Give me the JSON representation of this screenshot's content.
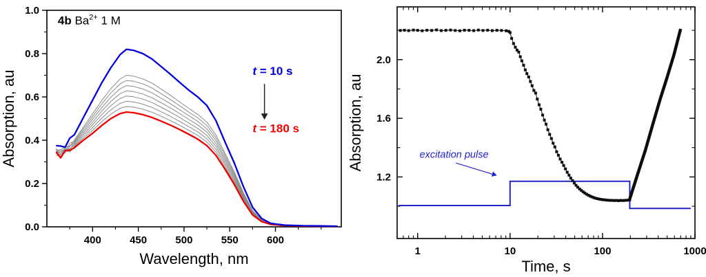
{
  "figure": {
    "background": "#ffffff"
  },
  "chart_data": [
    {
      "id": "spectra",
      "type": "line",
      "xlabel": "Wavelength, nm",
      "ylabel": "Absorption, au",
      "xlim": [
        350,
        672
      ],
      "ylim": [
        0,
        1.0
      ],
      "xticks": [
        400,
        450,
        500,
        550,
        600
      ],
      "yticks": [
        "0.0",
        "0.2",
        "0.4",
        "0.6",
        "0.8",
        "1.0"
      ],
      "title_annotation": {
        "bold": "4b",
        "base": " Ba",
        "sup": "2+",
        "tail": " 1 M",
        "x": 362,
        "y": 0.935
      },
      "label_start": {
        "italic": "t",
        "rest": " = 10 s",
        "color": "#0000dd",
        "x": 575,
        "y": 0.72
      },
      "label_end": {
        "italic": "t",
        "rest": " = 180 s",
        "color": "#ee0000",
        "x": 575,
        "y": 0.455
      },
      "arrow": {
        "x": 588,
        "y_from": 0.66,
        "y_to": 0.495,
        "color": "#222222"
      },
      "wavelengths": [
        360,
        365,
        370,
        375,
        380,
        390,
        400,
        410,
        420,
        430,
        437,
        445,
        455,
        465,
        475,
        485,
        495,
        505,
        515,
        525,
        535,
        545,
        555,
        565,
        575,
        585,
        595,
        610,
        630,
        650,
        668
      ],
      "initial": {
        "name": "t = 10 s",
        "color": "#0000dd",
        "width": 2.3,
        "values": [
          0.375,
          0.365,
          0.38,
          0.4,
          0.425,
          0.505,
          0.585,
          0.665,
          0.735,
          0.795,
          0.82,
          0.815,
          0.8,
          0.775,
          0.74,
          0.705,
          0.668,
          0.632,
          0.6,
          0.56,
          0.49,
          0.39,
          0.295,
          0.185,
          0.09,
          0.038,
          0.016,
          0.008,
          0.005,
          0.004,
          0.003
        ]
      },
      "final": {
        "name": "t = 180 s",
        "color": "#ee0000",
        "width": 2.3,
        "values": [
          0.335,
          0.33,
          0.345,
          0.352,
          0.365,
          0.4,
          0.432,
          0.468,
          0.5,
          0.523,
          0.53,
          0.527,
          0.518,
          0.505,
          0.488,
          0.47,
          0.45,
          0.428,
          0.405,
          0.375,
          0.33,
          0.265,
          0.196,
          0.118,
          0.055,
          0.024,
          0.011,
          0.006,
          0.004,
          0.003,
          0.002
        ]
      },
      "intermediate": {
        "color": "#8a8a8a",
        "width": 1,
        "peaks": [
          0.7,
          0.676,
          0.652,
          0.628,
          0.604,
          0.58,
          0.556
        ]
      }
    },
    {
      "id": "kinetics",
      "type": "scatter",
      "xlabel": "Time, s",
      "ylabel": "Absorption, au",
      "xscale": "log",
      "xlim": [
        0.6,
        1000
      ],
      "ylim": [
        0.78,
        2.36
      ],
      "xticks": [
        1,
        10,
        100,
        1000
      ],
      "yticks": [
        "1.2",
        "1.6",
        "2.0"
      ],
      "yticks_minor": [
        1.0,
        1.4,
        1.8,
        2.2
      ],
      "annotation": {
        "text": "excitation pulse",
        "color": "#2222cc",
        "x": 1.05,
        "y": 1.33,
        "arrow": {
          "x1": 2.6,
          "y1": 1.295,
          "x2": 7.2,
          "y2": 1.21
        }
      },
      "scatter": {
        "color": "#0d0d0d",
        "marker": "square",
        "size": 4,
        "points": [
          [
            0.65,
            2.199
          ],
          [
            0.72,
            2.201
          ],
          [
            0.8,
            2.198
          ],
          [
            0.9,
            2.202
          ],
          [
            1.0,
            2.2
          ],
          [
            1.12,
            2.197
          ],
          [
            1.26,
            2.201
          ],
          [
            1.42,
            2.199
          ],
          [
            1.6,
            2.203
          ],
          [
            1.8,
            2.198
          ],
          [
            2.02,
            2.2
          ],
          [
            2.27,
            2.202
          ],
          [
            2.55,
            2.199
          ],
          [
            2.86,
            2.197
          ],
          [
            3.21,
            2.201
          ],
          [
            3.6,
            2.2
          ],
          [
            4.04,
            2.198
          ],
          [
            4.54,
            2.202
          ],
          [
            5.09,
            2.199
          ],
          [
            5.72,
            2.201
          ],
          [
            6.42,
            2.198
          ],
          [
            7.2,
            2.2
          ],
          [
            8.08,
            2.199
          ],
          [
            9.07,
            2.197
          ],
          [
            9.7,
            2.193
          ],
          [
            10.0,
            2.185
          ],
          [
            10.4,
            2.145
          ],
          [
            10.9,
            2.11
          ],
          [
            11.4,
            2.085
          ],
          [
            11.9,
            2.065
          ],
          [
            12.4,
            2.052
          ],
          [
            12.9,
            2.02
          ],
          [
            13.4,
            1.992
          ],
          [
            14.0,
            1.962
          ],
          [
            14.6,
            1.93
          ],
          [
            15.2,
            1.905
          ],
          [
            15.9,
            1.882
          ],
          [
            16.6,
            1.851
          ],
          [
            17.3,
            1.822
          ],
          [
            18.1,
            1.79
          ],
          [
            18.9,
            1.772
          ],
          [
            19.7,
            1.731
          ],
          [
            20.6,
            1.692
          ],
          [
            21.5,
            1.662
          ],
          [
            22.5,
            1.622
          ],
          [
            23.5,
            1.588
          ],
          [
            24.5,
            1.56
          ],
          [
            25.6,
            1.522
          ],
          [
            26.8,
            1.49
          ],
          [
            28.0,
            1.462
          ],
          [
            29.2,
            1.43
          ],
          [
            30.5,
            1.405
          ],
          [
            31.9,
            1.372
          ],
          [
            33.3,
            1.348
          ],
          [
            34.8,
            1.322
          ],
          [
            36.4,
            1.3
          ],
          [
            38.0,
            1.278
          ],
          [
            39.7,
            1.255
          ],
          [
            41.5,
            1.232
          ],
          [
            43.4,
            1.212
          ],
          [
            45.3,
            1.192
          ],
          [
            47.4,
            1.175
          ],
          [
            49.5,
            1.158
          ],
          [
            51.7,
            1.143
          ],
          [
            54.0,
            1.13
          ],
          [
            56.5,
            1.118
          ],
          [
            59.0,
            1.108
          ],
          [
            61.7,
            1.098
          ],
          [
            64.4,
            1.09
          ],
          [
            67.3,
            1.082
          ],
          [
            70.4,
            1.075
          ],
          [
            73.5,
            1.069
          ],
          [
            76.8,
            1.064
          ],
          [
            80.3,
            1.059
          ],
          [
            83.9,
            1.055
          ],
          [
            87.7,
            1.052
          ],
          [
            91.6,
            1.049
          ],
          [
            95.7,
            1.047
          ],
          [
            100,
            1.045
          ],
          [
            105,
            1.044
          ],
          [
            110,
            1.042
          ],
          [
            116,
            1.041
          ],
          [
            122,
            1.04
          ],
          [
            128,
            1.04
          ],
          [
            135,
            1.039
          ],
          [
            142,
            1.04
          ],
          [
            149,
            1.038
          ],
          [
            157,
            1.04
          ],
          [
            165,
            1.039
          ],
          [
            174,
            1.04
          ],
          [
            183,
            1.041
          ],
          [
            192,
            1.042
          ],
          [
            197,
            1.044
          ]
        ]
      },
      "recovery": {
        "color": "#0d0d0d",
        "width": 4.5,
        "points": [
          [
            197,
            1.05
          ],
          [
            240,
            1.22
          ],
          [
            290,
            1.38
          ],
          [
            350,
            1.56
          ],
          [
            420,
            1.73
          ],
          [
            500,
            1.88
          ],
          [
            590,
            2.03
          ],
          [
            700,
            2.21
          ]
        ]
      },
      "pulse": {
        "color": "#2222cc",
        "width": 2,
        "points": [
          [
            0.62,
            1.005
          ],
          [
            10,
            1.005
          ],
          [
            10,
            1.17
          ],
          [
            197,
            1.17
          ],
          [
            197,
            0.985
          ],
          [
            900,
            0.985
          ]
        ]
      }
    }
  ]
}
